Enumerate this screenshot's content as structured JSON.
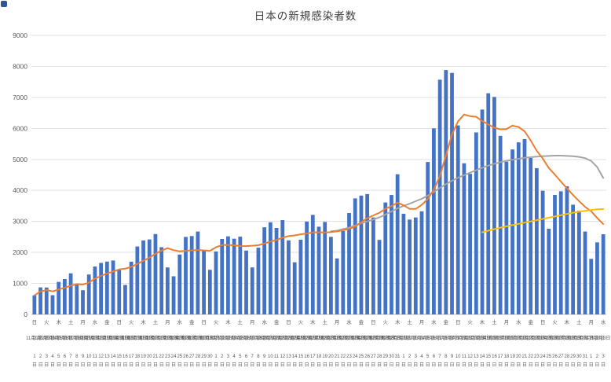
{
  "chart_data": {
    "type": "bar",
    "title": "日本の新規感染者数",
    "ymax": 9000,
    "ytick_step": 1000,
    "grid": true,
    "legend": "none",
    "colors": {
      "bar": "#4472C4",
      "orange": "#ED7D31",
      "gray": "#A5A5A5",
      "yellow": "#FFC000",
      "grid": "#e2e2e2",
      "axis": "#bfbfbf",
      "tick_text": "#595959"
    },
    "dow_cycle": [
      "日",
      "月",
      "火",
      "水",
      "木",
      "金",
      "土"
    ],
    "start_dow": "日",
    "months": [
      {
        "label": "11月",
        "days": 30
      },
      {
        "label": "12月",
        "days": 31
      },
      {
        "label": "1月",
        "days": 31
      },
      {
        "label": "2月",
        "days": 3
      }
    ],
    "daily_values": [
      614,
      871,
      867,
      620,
      1048,
      1141,
      1325,
      957,
      780,
      1287,
      1543,
      1661,
      1704,
      1738,
      1440,
      950,
      1699,
      2191,
      2386,
      2418,
      2592,
      2168,
      1515,
      1230,
      1931,
      2499,
      2527,
      2674,
      2066,
      1438,
      2030,
      2434,
      2518,
      2442,
      2508,
      2058,
      1515,
      2152,
      2810,
      2971,
      2790,
      3041,
      2388,
      1680,
      2410,
      2994,
      3211,
      2829,
      2984,
      2501,
      1806,
      2688,
      3271,
      3742,
      3832,
      3881,
      3127,
      2403,
      3610,
      3852,
      4520,
      3246,
      3059,
      3127,
      3325,
      4915,
      6001,
      7570,
      7882,
      7790,
      6097,
      4875,
      4534,
      5870,
      6607,
      7133,
      7014,
      5759,
      4925,
      5321,
      5549,
      5654,
      5045,
      4717,
      3988,
      2764,
      3853,
      3971,
      4133,
      3539,
      3344,
      2673,
      1792,
      2324,
      2585
    ],
    "series": {
      "orange": {
        "id": "orange-line",
        "start_index": 0,
        "values": [
          614,
          742,
          784,
          743,
          804,
          860,
          927,
          976,
          963,
          1023,
          1154,
          1242,
          1322,
          1381,
          1450,
          1475,
          1534,
          1626,
          1730,
          1832,
          1954,
          2058,
          2138,
          2071,
          2034,
          2050,
          2066,
          2078,
          2063,
          2052,
          2166,
          2238,
          2241,
          2229,
          2205,
          2204,
          2215,
          2232,
          2286,
          2351,
          2401,
          2477,
          2524,
          2547,
          2584,
          2611,
          2645,
          2650,
          2642,
          2658,
          2676,
          2716,
          2756,
          2832,
          2975,
          3103,
          3192,
          3278,
          3409,
          3492,
          3604,
          3520,
          3402,
          3402,
          3534,
          3721,
          4028,
          4463,
          5126,
          5801,
          6226,
          6447,
          6393,
          6374,
          6236,
          6129,
          6019,
          5970,
          5977,
          6090,
          6044,
          5908,
          5610,
          5281,
          5028,
          4720,
          4510,
          4285,
          4067,
          3852,
          3656,
          3468,
          3329,
          3111,
          2913
        ]
      },
      "gray": {
        "id": "gray-line",
        "start_index": 49,
        "values": [
          2680,
          2700,
          2750,
          2800,
          2870,
          2940,
          3000,
          3060,
          3130,
          3220,
          3320,
          3420,
          3500,
          3570,
          3650,
          3730,
          3830,
          3950,
          4080,
          4200,
          4310,
          4410,
          4490,
          4570,
          4650,
          4730,
          4800,
          4860,
          4910,
          4950,
          4990,
          5020,
          5050,
          5070,
          5090,
          5100,
          5110,
          5120,
          5120,
          5110,
          5100,
          5080,
          5040,
          4950,
          4750,
          4400
        ]
      },
      "yellow": {
        "id": "yellow-line",
        "start_index": 74,
        "values": [
          2650,
          2700,
          2750,
          2800,
          2840,
          2880,
          2920,
          2960,
          3000,
          3040,
          3080,
          3120,
          3160,
          3200,
          3240,
          3280,
          3310,
          3340,
          3370,
          3390,
          3400
        ]
      }
    },
    "x_label_day_suffix": "日"
  }
}
